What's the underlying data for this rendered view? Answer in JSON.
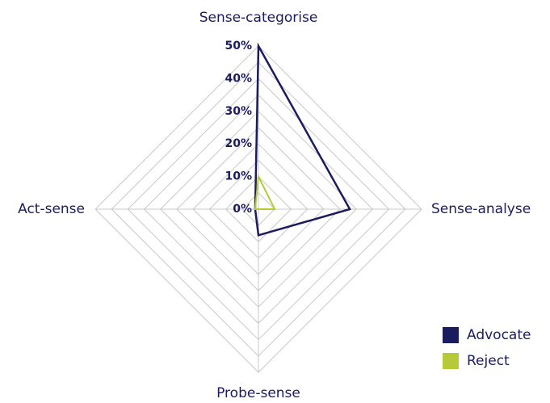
{
  "chart_data": {
    "type": "radar",
    "categories": [
      "Sense-categorise",
      "Sense-analyse",
      "Probe-sense",
      "Act-sense"
    ],
    "series": [
      {
        "name": "Advocate",
        "color": "#1b1b5f",
        "values": [
          50,
          28,
          8,
          1
        ]
      },
      {
        "name": "Reject",
        "color": "#b7c936",
        "values": [
          10,
          5,
          0,
          1
        ]
      }
    ],
    "ylim": [
      0,
      50
    ],
    "yticks": [
      {
        "value": 0,
        "label": "0%"
      },
      {
        "value": 10,
        "label": "10%"
      },
      {
        "value": 20,
        "label": "20%"
      },
      {
        "value": 30,
        "label": "30%"
      },
      {
        "value": 40,
        "label": "40%"
      },
      {
        "value": 50,
        "label": "50%"
      }
    ],
    "grid": true,
    "legend": "lower right"
  }
}
